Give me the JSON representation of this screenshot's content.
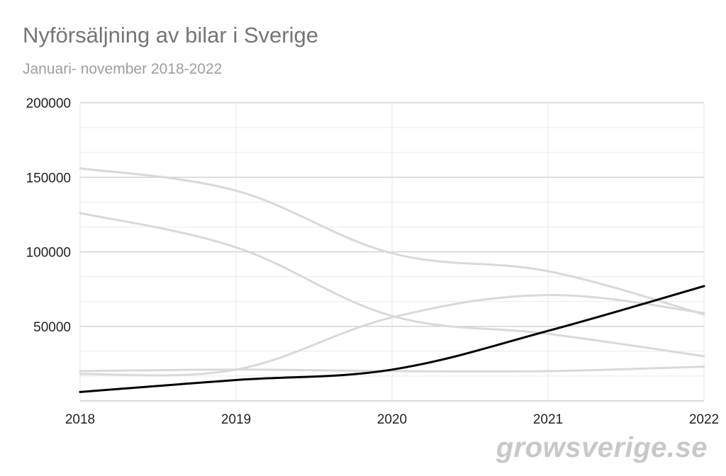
{
  "chart_data": {
    "type": "line",
    "title": "Nyförsäljning av bilar i Sverige",
    "subtitle": "Januari- november 2018-2022",
    "x": [
      "2018",
      "2019",
      "2020",
      "2021",
      "2022"
    ],
    "ylim": [
      0,
      200000
    ],
    "yticks": [
      50000,
      100000,
      150000,
      200000
    ],
    "grid": true,
    "smooth": true,
    "series": [
      {
        "values": [
          156000,
          141000,
          99000,
          87000,
          58000
        ],
        "color": "#d9d9d9"
      },
      {
        "values": [
          126000,
          103000,
          57000,
          45000,
          30000
        ],
        "color": "#d9d9d9"
      },
      {
        "values": [
          18000,
          21000,
          56000,
          71000,
          59000
        ],
        "color": "#d9d9d9"
      },
      {
        "values": [
          20000,
          21000,
          20000,
          20000,
          23000
        ],
        "color": "#d9d9d9"
      },
      {
        "values": [
          6000,
          14000,
          21000,
          47000,
          77000
        ],
        "color": "#000000"
      }
    ]
  },
  "watermark": "growsverige.se"
}
